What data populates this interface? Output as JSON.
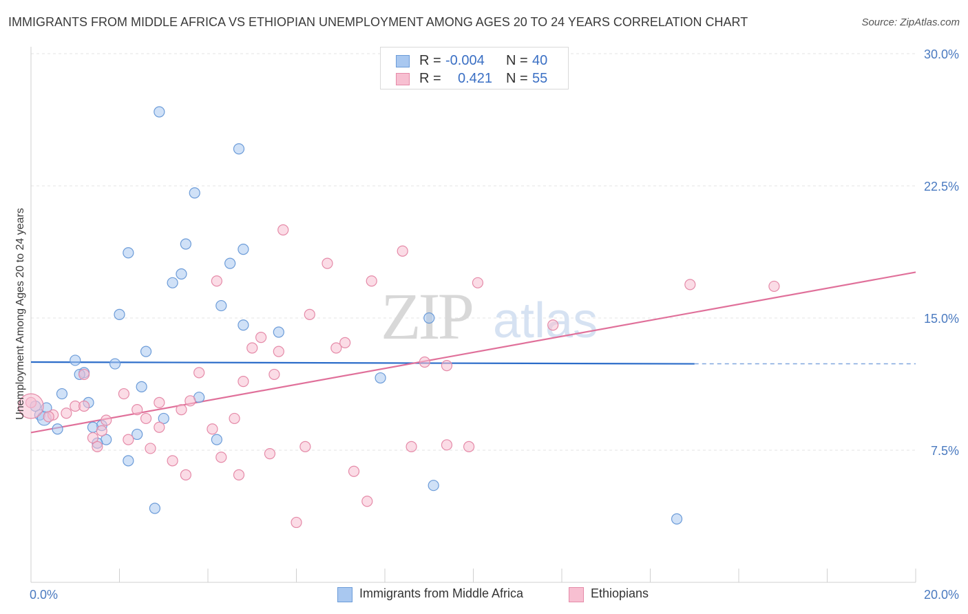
{
  "title": "IMMIGRANTS FROM MIDDLE AFRICA VS ETHIOPIAN UNEMPLOYMENT AMONG AGES 20 TO 24 YEARS CORRELATION CHART",
  "source": "Source: ZipAtlas.com",
  "watermark": {
    "zip": "ZIP",
    "atlas": "atlas"
  },
  "legend": {
    "rows": [
      {
        "r_label": "R =",
        "r_value": "-0.004",
        "n_label": "N =",
        "n_value": "40",
        "color": "#a9c8f0",
        "border": "#6b9bd8"
      },
      {
        "r_label": "R =",
        "r_value": "0.421",
        "n_label": "N =",
        "n_value": "55",
        "color": "#f7bfd1",
        "border": "#e58aa8"
      }
    ]
  },
  "chart_data": {
    "type": "scatter",
    "ylabel": "Unemployment Among Ages 20 to 24 years",
    "xlabel": "",
    "xlim": [
      0,
      20
    ],
    "ylim": [
      0,
      30
    ],
    "x_tick_labels": [
      "0.0%",
      "20.0%"
    ],
    "y_ticks": [
      7.5,
      15.0,
      22.5,
      30.0
    ],
    "y_tick_labels": [
      "7.5%",
      "15.0%",
      "22.5%",
      "30.0%"
    ],
    "grid": true,
    "series": [
      {
        "name": "Immigrants from Middle Africa",
        "color": "#a9c8f0",
        "stroke": "#6b9bd8",
        "trend_color": "#2b6cc9",
        "trend": {
          "x0": 0,
          "y0": 12.5,
          "x1": 15.0,
          "y1": 12.4,
          "x_dash_end": 20,
          "y_dash_end": 12.4
        },
        "points": [
          [
            2.9,
            26.7
          ],
          [
            4.7,
            24.6
          ],
          [
            3.7,
            22.1
          ],
          [
            2.2,
            18.7
          ],
          [
            3.5,
            19.2
          ],
          [
            4.8,
            18.9
          ],
          [
            4.5,
            18.1
          ],
          [
            3.4,
            17.5
          ],
          [
            3.2,
            17.0
          ],
          [
            4.3,
            15.7
          ],
          [
            2.0,
            15.2
          ],
          [
            9.0,
            15.0
          ],
          [
            4.8,
            14.6
          ],
          [
            5.6,
            14.2
          ],
          [
            2.6,
            13.1
          ],
          [
            1.0,
            12.6
          ],
          [
            1.9,
            12.4
          ],
          [
            1.2,
            11.9
          ],
          [
            1.1,
            11.8
          ],
          [
            7.9,
            11.6
          ],
          [
            2.5,
            11.1
          ],
          [
            3.8,
            10.5
          ],
          [
            0.7,
            10.7
          ],
          [
            1.3,
            10.2
          ],
          [
            0.1,
            10.0
          ],
          [
            0.35,
            9.9
          ],
          [
            0.2,
            9.5
          ],
          [
            0.3,
            9.3
          ],
          [
            3.0,
            9.3
          ],
          [
            1.6,
            8.9
          ],
          [
            1.4,
            8.8
          ],
          [
            0.6,
            8.7
          ],
          [
            2.4,
            8.4
          ],
          [
            1.7,
            8.1
          ],
          [
            4.2,
            8.1
          ],
          [
            1.5,
            7.9
          ],
          [
            2.2,
            6.9
          ],
          [
            9.1,
            5.5
          ],
          [
            2.8,
            4.2
          ],
          [
            14.6,
            3.6
          ]
        ]
      },
      {
        "name": "Ethiopians",
        "color": "#f7bfd1",
        "stroke": "#e58aa8",
        "trend_color": "#e0709a",
        "trend": {
          "x0": 0,
          "y0": 8.5,
          "x1": 20,
          "y1": 17.6
        },
        "points": [
          [
            5.7,
            20.0
          ],
          [
            8.4,
            18.8
          ],
          [
            6.7,
            18.1
          ],
          [
            4.2,
            17.1
          ],
          [
            7.7,
            17.1
          ],
          [
            10.1,
            17.0
          ],
          [
            14.9,
            16.9
          ],
          [
            16.8,
            16.8
          ],
          [
            6.3,
            15.2
          ],
          [
            11.8,
            14.6
          ],
          [
            5.2,
            13.9
          ],
          [
            7.1,
            13.6
          ],
          [
            5.0,
            13.3
          ],
          [
            6.9,
            13.3
          ],
          [
            5.6,
            13.1
          ],
          [
            8.9,
            12.5
          ],
          [
            9.4,
            12.3
          ],
          [
            3.8,
            11.9
          ],
          [
            1.2,
            11.8
          ],
          [
            5.5,
            11.8
          ],
          [
            4.8,
            11.4
          ],
          [
            2.1,
            10.7
          ],
          [
            3.6,
            10.3
          ],
          [
            0.0,
            10.2
          ],
          [
            2.9,
            10.2
          ],
          [
            1.0,
            10.0
          ],
          [
            1.2,
            10.0
          ],
          [
            3.4,
            9.8
          ],
          [
            2.4,
            9.8
          ],
          [
            0.8,
            9.6
          ],
          [
            0.5,
            9.5
          ],
          [
            0.4,
            9.4
          ],
          [
            1.7,
            9.2
          ],
          [
            2.6,
            9.3
          ],
          [
            4.6,
            9.3
          ],
          [
            2.9,
            8.8
          ],
          [
            1.6,
            8.6
          ],
          [
            4.1,
            8.7
          ],
          [
            2.2,
            8.1
          ],
          [
            1.4,
            8.2
          ],
          [
            1.5,
            7.7
          ],
          [
            6.2,
            7.7
          ],
          [
            8.6,
            7.7
          ],
          [
            9.4,
            7.8
          ],
          [
            9.9,
            7.7
          ],
          [
            2.7,
            7.6
          ],
          [
            5.4,
            7.3
          ],
          [
            4.3,
            7.1
          ],
          [
            3.2,
            6.9
          ],
          [
            7.3,
            6.3
          ],
          [
            3.5,
            6.1
          ],
          [
            4.7,
            6.1
          ],
          [
            7.6,
            4.6
          ],
          [
            6.0,
            3.4
          ],
          [
            0.0,
            10.0
          ]
        ]
      }
    ]
  }
}
